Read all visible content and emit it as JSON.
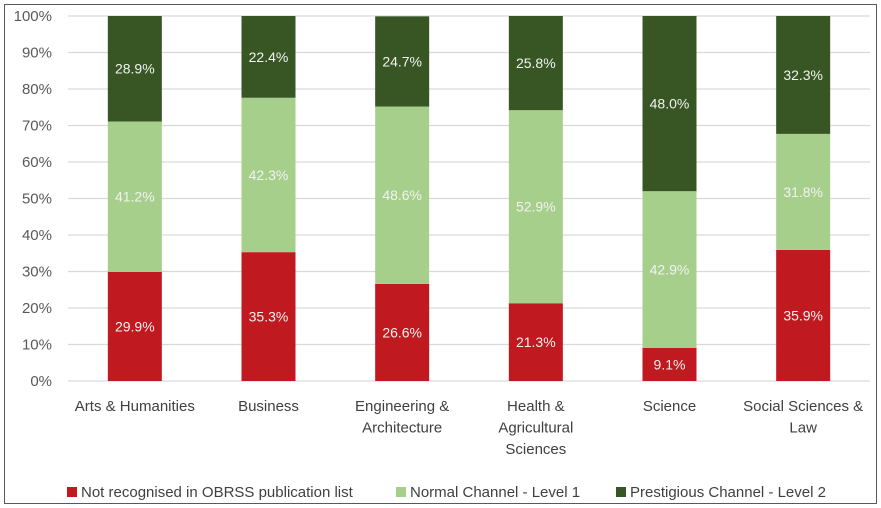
{
  "chart_data": {
    "type": "bar",
    "stacked": true,
    "percent_stacked": true,
    "title": "",
    "xlabel": "",
    "ylabel": "",
    "ylim": [
      0,
      100
    ],
    "y_ticks": [
      "0%",
      "10%",
      "20%",
      "30%",
      "40%",
      "50%",
      "60%",
      "70%",
      "80%",
      "90%",
      "100%"
    ],
    "grid": true,
    "legend_position": "bottom",
    "categories": [
      [
        "Arts & Humanities"
      ],
      [
        "Business"
      ],
      [
        "Engineering &",
        "Architecture"
      ],
      [
        "Health &",
        "Agricultural",
        "Sciences"
      ],
      [
        "Science"
      ],
      [
        "Social Sciences &",
        "Law"
      ]
    ],
    "series": [
      {
        "name": "Not recognised in OBRSS publication list",
        "color": "#c0191f",
        "values": [
          29.9,
          35.3,
          26.6,
          21.3,
          9.1,
          35.9
        ],
        "labels": [
          "29.9%",
          "35.3%",
          "26.6%",
          "21.3%",
          "9.1%",
          "35.9%"
        ]
      },
      {
        "name": "Normal Channel - Level 1",
        "color": "#a6cf8c",
        "values": [
          41.2,
          42.3,
          48.6,
          52.9,
          42.9,
          31.8
        ],
        "labels": [
          "41.2%",
          "42.3%",
          "48.6%",
          "52.9%",
          "42.9%",
          "31.8%"
        ]
      },
      {
        "name": "Prestigious Channel - Level 2",
        "color": "#375623",
        "values": [
          28.9,
          22.4,
          24.7,
          25.8,
          48.0,
          32.3
        ],
        "labels": [
          "28.9%",
          "22.4%",
          "24.7%",
          "25.8%",
          "48.0%",
          "32.3%"
        ]
      }
    ]
  }
}
